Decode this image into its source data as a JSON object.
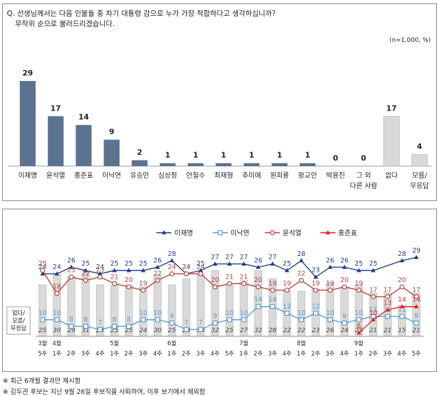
{
  "question": {
    "line1": "Q. 선생님께서는 다음 인물들 중 차기 대통령 감으로 누가 가장 적합하다고 생각하십니까?",
    "line2": "무작위 순으로 불러드리겠습니다.",
    "note": "(n=1,000,  %)"
  },
  "chart_data": [
    {
      "type": "bar",
      "categories": [
        "이재명",
        "윤석열",
        "홍준표",
        "이낙연",
        "유승민",
        "심상정",
        "안철수",
        "최재형",
        "추미애",
        "원희룡",
        "황교안",
        "박용진",
        "그 외\n다른 사람",
        "없다",
        "모름/\n무응답"
      ],
      "values": [
        29,
        17,
        14,
        9,
        2,
        1,
        1,
        1,
        1,
        1,
        1,
        0,
        0,
        17,
        4
      ],
      "colors": [
        "#5b7391",
        "#5b7391",
        "#5b7391",
        "#5b7391",
        "#5b7391",
        "#5b7391",
        "#5b7391",
        "#5b7391",
        "#5b7391",
        "#5b7391",
        "#5b7391",
        "#5b7391",
        "#5b7391",
        "#d9d9d9",
        "#d9d9d9"
      ],
      "ylim": [
        0,
        32
      ]
    },
    {
      "type": "line",
      "x": [
        "3월 5주",
        "4월 1주",
        "2주",
        "3주",
        "4주",
        "5월 1주",
        "2주",
        "3주",
        "4주",
        "6월 1주",
        "2주",
        "3주",
        "4주",
        "5주",
        "7월 1주",
        "2주",
        "3주",
        "4주",
        "8월 1주",
        "2주",
        "3주",
        "4주",
        "9월 1주",
        "2주",
        "3주",
        "4주",
        "5주"
      ],
      "month_labels": [
        {
          "index": 0,
          "text": "3월"
        },
        {
          "index": 1,
          "text": "4월"
        },
        {
          "index": 5,
          "text": "5월"
        },
        {
          "index": 9,
          "text": "6월"
        },
        {
          "index": 14,
          "text": "7월"
        },
        {
          "index": 18,
          "text": "8월"
        },
        {
          "index": 22,
          "text": "9월"
        }
      ],
      "week_labels": [
        "5주",
        "1주",
        "2주",
        "3주",
        "4주",
        "1주",
        "2주",
        "3주",
        "4주",
        "1주",
        "2주",
        "3주",
        "4주",
        "5주",
        "1주",
        "2주",
        "3주",
        "4주",
        "1주",
        "2주",
        "3주",
        "4주",
        "1주",
        "2주",
        "3주",
        "4주",
        "5주"
      ],
      "legend": [
        "이재명",
        "이낙연",
        "윤석열",
        "홍준표"
      ],
      "legend_position": "top",
      "bars_label": "없다/\n모름/\n무응답",
      "bars": [
        25,
        30,
        29,
        31,
        25,
        25,
        25,
        24,
        30,
        25,
        28,
        30,
        32,
        25,
        27,
        32,
        28,
        22,
        22,
        23,
        26,
        24,
        25,
        21,
        21,
        15,
        21
      ],
      "series": [
        {
          "name": "이재명",
          "color": "#1f3d8a",
          "marker": "triangle",
          "values": [
            24,
            24,
            26,
            25,
            24,
            25,
            25,
            25,
            26,
            28,
            24,
            25,
            27,
            27,
            27,
            26,
            27,
            25,
            28,
            23,
            26,
            26,
            25,
            25,
            null,
            28,
            29
          ]
        },
        {
          "name": "이낙연",
          "color": "#5b9bd5",
          "marker": "square",
          "values": [
            10,
            10,
            8,
            8,
            7,
            8,
            8,
            10,
            10,
            9,
            7,
            7,
            9,
            10,
            10,
            14,
            14,
            12,
            10,
            12,
            10,
            9,
            10,
            11,
            11,
            11,
            9
          ]
        },
        {
          "name": "윤석열",
          "color": "#b5433a",
          "marker": "circle",
          "values": [
            25,
            18,
            23,
            22,
            23,
            21,
            20,
            19,
            22,
            24,
            24,
            24,
            20,
            21,
            21,
            20,
            19,
            19,
            22,
            19,
            19,
            20,
            19,
            17,
            17,
            20,
            17
          ]
        },
        {
          "name": "홍준표",
          "color": "#e8231f",
          "marker": "triangle",
          "values": [
            null,
            null,
            null,
            null,
            null,
            null,
            null,
            null,
            null,
            null,
            null,
            null,
            null,
            null,
            null,
            null,
            null,
            null,
            null,
            null,
            null,
            null,
            6,
            10,
            13,
            14,
            14
          ]
        }
      ],
      "ylim": [
        0,
        35
      ]
    }
  ],
  "footnotes": [
    "※ 최근 6개월 결과만 제시함",
    "※ 김두관 후보는 지난 9월 26일 후보직을 사퇴하여, 이후 보기에서 제외함"
  ]
}
